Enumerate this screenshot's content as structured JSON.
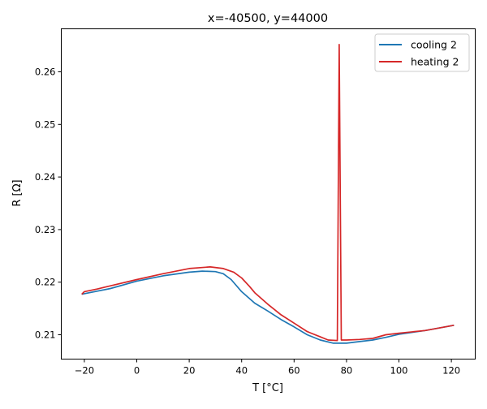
{
  "chart_data": {
    "type": "line",
    "title": "x=-40500, y=44000",
    "xlabel": "T [°C]",
    "ylabel": "R [Ω]",
    "xlim": [
      -28.8,
      129.1
    ],
    "ylim": [
      0.20537,
      0.26818
    ],
    "xticks": [
      -20,
      0,
      20,
      40,
      60,
      80,
      100,
      120
    ],
    "yticks": [
      0.21,
      0.22,
      0.23,
      0.24,
      0.25,
      0.26
    ],
    "xtick_labels": [
      "−20",
      "0",
      "20",
      "40",
      "60",
      "80",
      "100",
      "120"
    ],
    "ytick_labels": [
      "0.21",
      "0.22",
      "0.23",
      "0.24",
      "0.25",
      "0.26"
    ],
    "grid": false,
    "legend_position": "top-right",
    "series": [
      {
        "name": "cooling 2",
        "color": "#1f77b4",
        "x": [
          -21,
          -10,
          0,
          10,
          20,
          25,
          30,
          33,
          36,
          40,
          45,
          50,
          55,
          60,
          65,
          70,
          75,
          80,
          85,
          90,
          95,
          100,
          110,
          121
        ],
        "y": [
          0.2177,
          0.2188,
          0.2202,
          0.2212,
          0.2219,
          0.2221,
          0.222,
          0.2216,
          0.2205,
          0.2182,
          0.216,
          0.2145,
          0.2129,
          0.2115,
          0.21,
          0.209,
          0.2084,
          0.2084,
          0.2087,
          0.209,
          0.2095,
          0.2101,
          0.2108,
          0.2118
        ]
      },
      {
        "name": "heating 2",
        "color": "#d62728",
        "x": [
          -21,
          -20,
          -15,
          -10,
          0,
          10,
          20,
          28,
          33,
          37,
          40,
          43,
          45,
          50,
          55,
          60,
          65,
          70,
          73,
          76.5,
          77.2,
          78,
          80,
          85,
          90,
          95,
          100,
          110,
          121
        ],
        "y": [
          0.2177,
          0.2182,
          0.2187,
          0.2193,
          0.2205,
          0.2216,
          0.2226,
          0.2229,
          0.2226,
          0.2219,
          0.2208,
          0.2192,
          0.218,
          0.2158,
          0.2138,
          0.2122,
          0.2106,
          0.2096,
          0.209,
          0.2089,
          0.2652,
          0.209,
          0.209,
          0.2091,
          0.2093,
          0.21,
          0.2103,
          0.2108,
          0.2118
        ]
      }
    ]
  }
}
